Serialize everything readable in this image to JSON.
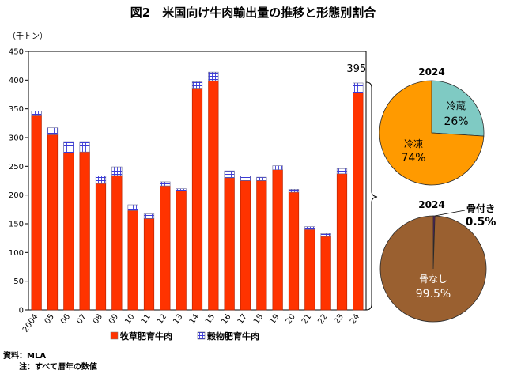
{
  "title": "図2　米国向け牛肉輸出量の推移と形態別割合",
  "source_lines": [
    "資料：MLA",
    "　　注：すべて暦年の数値"
  ],
  "chart_data": [
    {
      "type": "bar",
      "stacked": true,
      "unit": "（千トン）",
      "categories": [
        "2004",
        "05",
        "06",
        "07",
        "08",
        "09",
        "10",
        "11",
        "12",
        "13",
        "14",
        "15",
        "16",
        "17",
        "18",
        "19",
        "20",
        "21",
        "22",
        "23",
        "24"
      ],
      "series": [
        {
          "name": "牧草肥育牛肉",
          "color": "#ff3300",
          "values": [
            338,
            305,
            273,
            275,
            220,
            234,
            173,
            159,
            216,
            207,
            386,
            399,
            230,
            225,
            225,
            244,
            205,
            140,
            128,
            237,
            378
          ]
        },
        {
          "name": "穀物肥育牛肉",
          "color": "#8080ff",
          "values": [
            8,
            12,
            20,
            18,
            13,
            15,
            10,
            8,
            7,
            4,
            11,
            15,
            12,
            8,
            6,
            7,
            5,
            5,
            5,
            9,
            17
          ]
        }
      ],
      "ylim": [
        0,
        450
      ],
      "yticks": [
        0,
        50,
        100,
        150,
        200,
        250,
        300,
        350,
        400,
        450
      ],
      "annotations": [
        {
          "category": "24",
          "text": "395"
        }
      ],
      "legend_position": "bottom"
    },
    {
      "type": "pie",
      "title": "2024",
      "slices": [
        {
          "label": "冷蔵",
          "value": 26,
          "text": "26%",
          "color": "#7fcac3"
        },
        {
          "label": "冷凍",
          "value": 74,
          "text": "74%",
          "color": "#ff9a00"
        }
      ]
    },
    {
      "type": "pie",
      "title": "2024",
      "slices": [
        {
          "label": "骨付き",
          "value": 0.5,
          "text": "0.5%",
          "color": "#5a1f6e"
        },
        {
          "label": "骨なし",
          "value": 99.5,
          "text": "99.5%",
          "color": "#9a6030"
        }
      ]
    }
  ]
}
